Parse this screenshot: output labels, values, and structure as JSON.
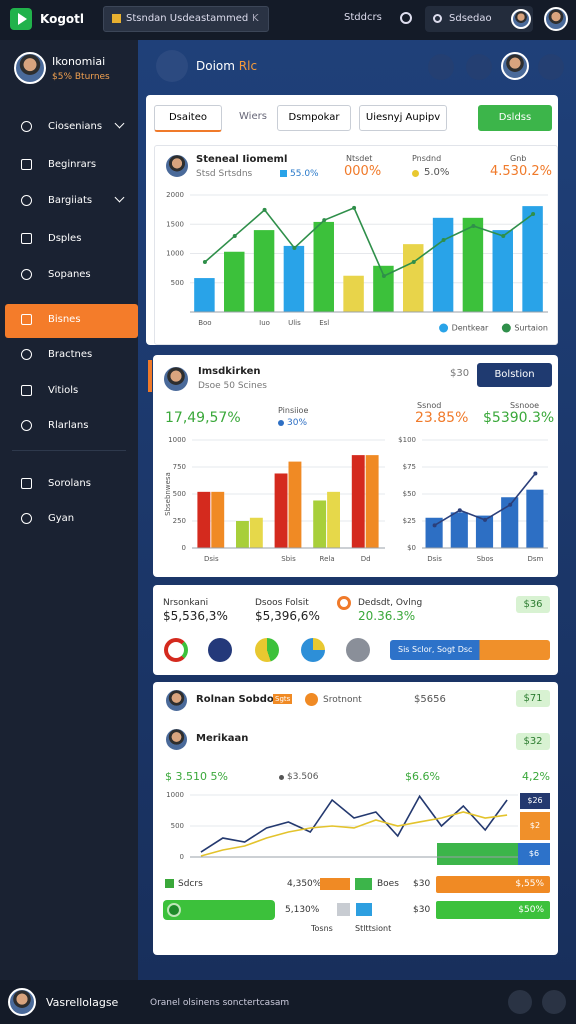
{
  "topbar": {
    "app": "Kogotl",
    "tab": "Stsndan Usdeastammed",
    "tab_close": "K",
    "link": "Stddcrs",
    "search": "Sdsedao"
  },
  "profile": {
    "name": "Ikonomiai",
    "role": "$5% Bturnes"
  },
  "nav": [
    "Ciosenians",
    "Beginrars",
    "Bargiiats",
    "Dsples",
    "Sopanes",
    "Bisnes",
    "Bractnes",
    "Vitiols",
    "Rlarlans",
    "Sorolans",
    "Gyan"
  ],
  "nav_active": 5,
  "nav_expandable": [
    0,
    2
  ],
  "nav_divider_after": 8,
  "header": {
    "title": "Doiom",
    "accent": "Rlc"
  },
  "toolbar": {
    "items": [
      "Dsaiteo",
      "Wiers",
      "Dsmpokar",
      "Uiesnyj Aupipv"
    ],
    "action": "Dsldss"
  },
  "card1": {
    "title": "Steneal Iiomeml",
    "subtitle": "Stsd Srtsdns",
    "badge": "55.0%",
    "stats": [
      {
        "label": "Ntsdet",
        "value": "000%"
      },
      {
        "label": "Pnsdnd",
        "value": "5.0%"
      },
      {
        "label": "Gnb",
        "value": "4.530.2%"
      }
    ]
  },
  "card2": {
    "title": "Imsdkirken",
    "subtitle": "Dsoe 50 Scines",
    "meta": "$30",
    "button": "Bolstion",
    "left_value": "17,49,57%",
    "left_label": "Pinsiioe",
    "left_badge": "30%",
    "right_labels": [
      "Ssnod",
      "Ssnooe"
    ],
    "right_values": [
      "23.85%",
      "$5390.3%"
    ]
  },
  "card3": {
    "stats": [
      {
        "label": "Nrsonkani",
        "value": "$5,536,3%"
      },
      {
        "label": "Dsoos Folsit",
        "value": "$5,396,6%"
      },
      {
        "label": "Dedsdt, Ovlng",
        "value": "20.36.3%"
      }
    ],
    "badge": "$36",
    "progress": "Sis Sclor, Sogt Dsc"
  },
  "card4": {
    "title": "Rolnan Sobdoni",
    "tag": "Sgts",
    "status": "Srotnont",
    "meta": "$5656",
    "badge1": "$71",
    "subtitle": "Merikaan",
    "badge2": "$32",
    "stats": [
      "$ 3.510 5%",
      "$3.506",
      "$6.6%",
      "4,2%"
    ],
    "side_labels": [
      "$26",
      "$2",
      "$6"
    ],
    "rows": [
      {
        "label": "Sdcrs",
        "value": "4,350%",
        "legend": "Boes",
        "amount": "$30",
        "bar": "$,55%"
      },
      {
        "value": "5,130%",
        "amount": "$30",
        "bar": "$50%"
      }
    ],
    "footer": [
      "Tosns",
      "Stlttsiont"
    ]
  },
  "bottom": {
    "user": "Vasrellolagse",
    "status": "Oranel olsinens sonctertcasam"
  },
  "chart_data": [
    {
      "type": "bar",
      "categories": [
        "Boo",
        null,
        "Iuo",
        "Ulis",
        "Esl",
        null,
        null,
        null,
        null,
        null,
        null,
        null
      ],
      "ylim": [
        0,
        2000
      ],
      "yticks": [
        500,
        1000,
        1500,
        2000
      ],
      "grid": true,
      "legend": "bottom-right",
      "series": [
        {
          "name": "Dentkear",
          "color": "#29a3e8",
          "colors": [
            "#29a3e8",
            "#3cc13b",
            "#3cc13b",
            "#29a3e8",
            "#3cc13b",
            "#e8d44a",
            "#3cc13b",
            "#e8d44a",
            "#29a3e8",
            "#3cc13b",
            "#29a3e8",
            "#29a3e8"
          ],
          "values": [
            580,
            1030,
            1400,
            1130,
            1540,
            620,
            790,
            1160,
            1610,
            1610,
            1400,
            1810
          ]
        },
        {
          "name": "Surtaion",
          "type": "line",
          "color": "#2f8f4a",
          "values": [
            855,
            1300,
            1745,
            1095,
            1570,
            1780,
            615,
            855,
            1230,
            1470,
            1300,
            1675
          ]
        }
      ]
    },
    {
      "type": "bar",
      "categories": [
        "Dsis",
        null,
        "Sbis",
        "Rela",
        "Dd"
      ],
      "ylim": [
        0,
        1000
      ],
      "yticks": [
        0,
        250,
        500,
        750,
        1000
      ],
      "grid": true,
      "ylabel": "Sbsebnwesa",
      "series": [
        {
          "color": "#d42a1e",
          "colors": [
            "#d42a1e",
            "#a8cf3a",
            "#d42a1e",
            "#a8cf3a",
            "#d42a1e"
          ],
          "values": [
            520,
            250,
            690,
            440,
            860
          ]
        },
        {
          "color": "#f08a24",
          "colors": [
            "#f08a24",
            "#e6d84a",
            "#f08a24",
            "#e6d84a",
            "#f08a24"
          ],
          "values": [
            520,
            280,
            800,
            520,
            860
          ]
        }
      ]
    },
    {
      "type": "bar",
      "categories": [
        "Dsis",
        null,
        "Sbos",
        null,
        "Dsm"
      ],
      "ylim": [
        0,
        100
      ],
      "yticks": [
        {
          "value": 0,
          "label": "$0"
        },
        {
          "value": 25,
          "label": "$25"
        },
        {
          "value": 50,
          "label": "$50"
        },
        {
          "value": 75,
          "label": "$75"
        },
        {
          "value": 100,
          "label": "$100"
        }
      ],
      "grid": true,
      "series": [
        {
          "color": "#2d6fc4",
          "values": [
            28,
            33,
            30,
            47,
            54
          ]
        },
        {
          "type": "line",
          "color": "#2b3f7a",
          "values": [
            21,
            35,
            26,
            40,
            69
          ]
        }
      ]
    },
    {
      "type": "line",
      "categories": [
        null,
        null,
        null,
        null,
        null,
        null,
        null,
        null,
        null,
        null,
        null,
        null,
        null,
        null,
        null
      ],
      "ylim": [
        0,
        1000
      ],
      "yticks": [
        0,
        500,
        1000
      ],
      "grid": true,
      "series": [
        {
          "color": "#24396f",
          "values": [
            80,
            306,
            242,
            468,
            565,
            403,
            919,
            629,
            726,
            339,
            980,
            500,
            823,
            435,
            919
          ]
        },
        {
          "color": "#e3c32c",
          "values": [
            16,
            113,
            177,
            306,
            403,
            468,
            500,
            468,
            597,
            500,
            565,
            629,
            726,
            629,
            677
          ]
        }
      ]
    }
  ]
}
